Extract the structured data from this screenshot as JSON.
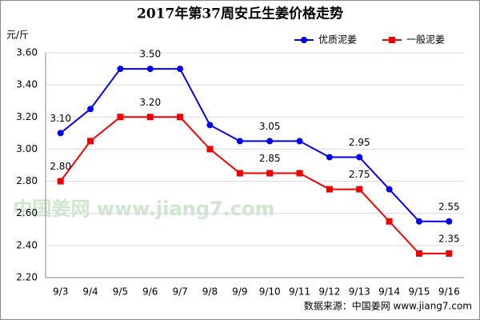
{
  "chart_data": {
    "type": "line",
    "title": "2017年第37周安丘生姜价格走势",
    "y_label": "元/斤",
    "source": "数据来源：中国姜网 www.jiang7.com",
    "watermark": "中国姜网 www.jiang7.com",
    "categories": [
      "9/3",
      "9/4",
      "9/5",
      "9/6",
      "9/7",
      "9/8",
      "9/9",
      "9/10",
      "9/11",
      "9/12",
      "9/13",
      "9/14",
      "9/15",
      "9/16"
    ],
    "series": [
      {
        "name": "优质泥姜",
        "color": "#0000ee",
        "marker": "circle",
        "values": [
          3.1,
          3.25,
          3.5,
          3.5,
          3.5,
          3.15,
          3.05,
          3.05,
          3.05,
          2.95,
          2.95,
          2.75,
          2.55,
          2.55
        ],
        "value_labels": [
          "3.10",
          null,
          null,
          "3.50",
          null,
          null,
          null,
          "3.05",
          null,
          null,
          "2.95",
          null,
          null,
          "2.55"
        ]
      },
      {
        "name": "一般泥姜",
        "color": "#ee0000",
        "marker": "square",
        "values": [
          2.8,
          3.05,
          3.2,
          3.2,
          3.2,
          3.0,
          2.85,
          2.85,
          2.85,
          2.75,
          2.75,
          2.55,
          2.35,
          2.35
        ],
        "value_labels": [
          "2.80",
          null,
          null,
          "3.20",
          null,
          null,
          null,
          "2.85",
          null,
          null,
          "2.75",
          null,
          null,
          "2.35"
        ]
      }
    ],
    "ylim": [
      2.2,
      3.6
    ],
    "yticks": [
      {
        "value": 2.2,
        "label": "2.20"
      },
      {
        "value": 2.4,
        "label": "2.40"
      },
      {
        "value": 2.6,
        "label": "2.60"
      },
      {
        "value": 2.8,
        "label": "2.80"
      },
      {
        "value": 3.0,
        "label": "3.00"
      },
      {
        "value": 3.2,
        "label": "3.20"
      },
      {
        "value": 3.4,
        "label": "3.40"
      },
      {
        "value": 3.6,
        "label": "3.60"
      }
    ],
    "grid": true,
    "legend": "top-right"
  }
}
